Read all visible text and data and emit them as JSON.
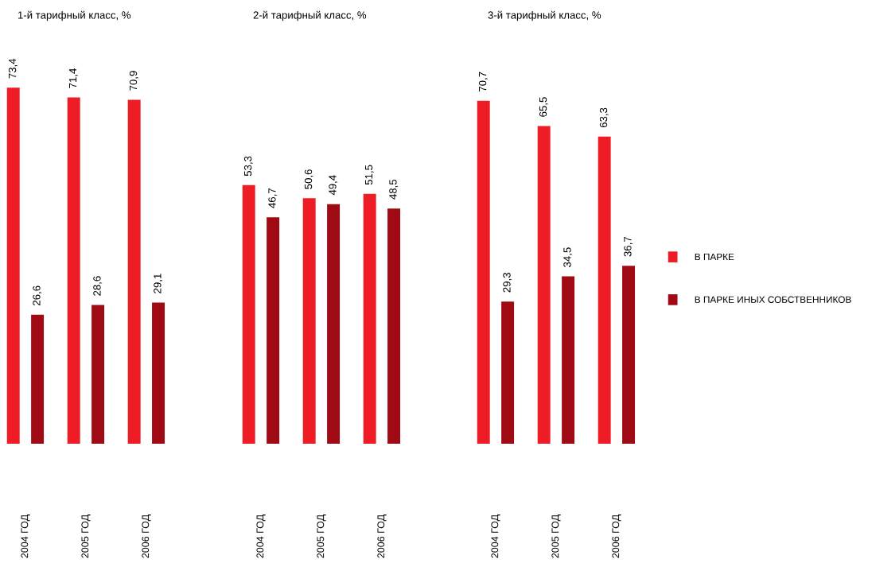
{
  "chart_data": [
    {
      "type": "bar",
      "title": "1-й тарифный класс, %",
      "categories": [
        "2004 ГОД",
        "2005 ГОД",
        "2006 ГОД"
      ],
      "grid": false,
      "series": [
        {
          "color": "#ee1c25",
          "values": [
            73.4,
            71.4,
            70.9
          ],
          "value_labels": [
            "73,4",
            "71,4",
            "70,9"
          ]
        },
        {
          "color": "#a00a14",
          "values": [
            26.6,
            28.6,
            29.1
          ],
          "value_labels": [
            "26,6",
            "28,6",
            "29,1"
          ]
        }
      ]
    },
    {
      "type": "bar",
      "title": "2-й тарифный класс, %",
      "categories": [
        "2004 ГОД",
        "2005 ГОД",
        "2006 ГОД"
      ],
      "grid": false,
      "series": [
        {
          "color": "#ee1c25",
          "values": [
            53.3,
            50.6,
            51.5
          ],
          "value_labels": [
            "53,3",
            "50,6",
            "51,5"
          ]
        },
        {
          "color": "#a00a14",
          "values": [
            46.7,
            49.4,
            48.5
          ],
          "value_labels": [
            "46,7",
            "49,4",
            "48,5"
          ]
        }
      ]
    },
    {
      "type": "bar",
      "title": "3-й тарифный класс, %",
      "categories": [
        "2004 ГОД",
        "2005 ГОД",
        "2006 ГОД"
      ],
      "grid": false,
      "legend": "right",
      "series": [
        {
          "name": "В ПАРКЕ",
          "color": "#ee1c25",
          "values": [
            70.7,
            65.5,
            63.3
          ],
          "value_labels": [
            "70,7",
            "65,5",
            "63,3"
          ]
        },
        {
          "name": "В ПАРКЕ ИНЫХ СОБСТВЕННИКОВ",
          "color": "#a00a14",
          "values": [
            29.3,
            34.5,
            36.7
          ],
          "value_labels": [
            "29,3",
            "34,5",
            "36,7"
          ]
        }
      ]
    }
  ]
}
